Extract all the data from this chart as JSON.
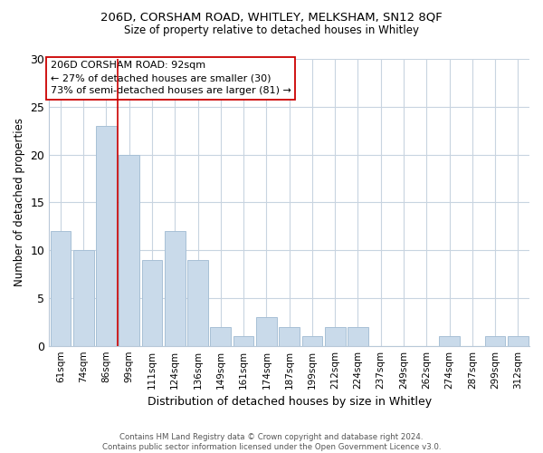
{
  "title": "206D, CORSHAM ROAD, WHITLEY, MELKSHAM, SN12 8QF",
  "subtitle": "Size of property relative to detached houses in Whitley",
  "xlabel": "Distribution of detached houses by size in Whitley",
  "ylabel": "Number of detached properties",
  "bar_labels": [
    "61sqm",
    "74sqm",
    "86sqm",
    "99sqm",
    "111sqm",
    "124sqm",
    "136sqm",
    "149sqm",
    "161sqm",
    "174sqm",
    "187sqm",
    "199sqm",
    "212sqm",
    "224sqm",
    "237sqm",
    "249sqm",
    "262sqm",
    "274sqm",
    "287sqm",
    "299sqm",
    "312sqm"
  ],
  "bar_values": [
    12,
    10,
    23,
    20,
    9,
    12,
    9,
    2,
    1,
    3,
    2,
    1,
    2,
    2,
    0,
    0,
    0,
    1,
    0,
    1,
    1
  ],
  "bar_color": "#c9daea",
  "bar_edge_color": "#a8c0d6",
  "vline_color": "#cc0000",
  "vline_x_index": 3,
  "annotation_line1": "206D CORSHAM ROAD: 92sqm",
  "annotation_line2": "← 27% of detached houses are smaller (30)",
  "annotation_line3": "73% of semi-detached houses are larger (81) →",
  "ylim": [
    0,
    30
  ],
  "yticks": [
    0,
    5,
    10,
    15,
    20,
    25,
    30
  ],
  "footer_text": "Contains HM Land Registry data © Crown copyright and database right 2024.\nContains public sector information licensed under the Open Government Licence v3.0.",
  "bg_color": "#ffffff",
  "grid_color": "#c8d4e0"
}
